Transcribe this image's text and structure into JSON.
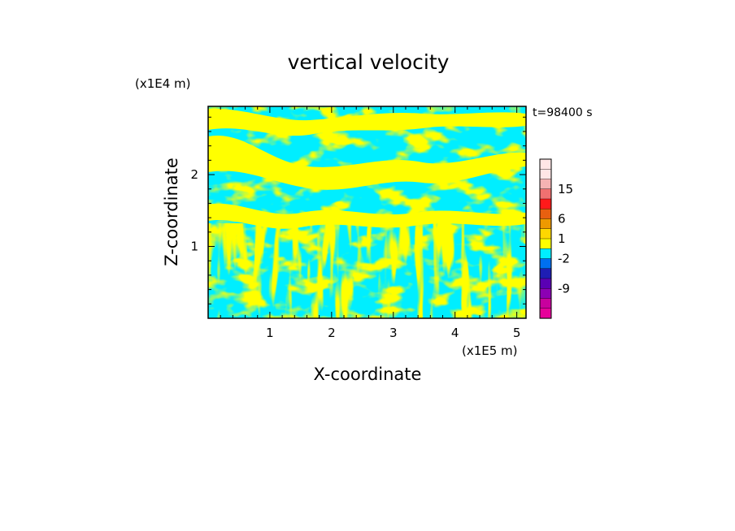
{
  "chart_data": {
    "type": "heatmap",
    "title": "vertical velocity",
    "xlabel": "X-coordinate",
    "ylabel": "Z-coordinate",
    "x_unit": "(x1E5 m)",
    "y_unit": "(x1E4 m)",
    "time_label": "t=98400 s",
    "xlim": [
      0,
      5.15
    ],
    "ylim": [
      0,
      2.95
    ],
    "x_ticks": [
      1,
      2,
      3,
      4,
      5
    ],
    "x_tick_labels": [
      "1",
      "2",
      "3",
      "4",
      "5"
    ],
    "y_ticks": [
      1,
      2
    ],
    "y_tick_labels": [
      "1",
      "2"
    ],
    "dominant_colors": {
      "positive": "#ffff00",
      "negative": "#00eeff"
    },
    "colorbar": {
      "labels": [
        {
          "value": 15,
          "text": "15"
        },
        {
          "value": 6,
          "text": "6"
        },
        {
          "value": 1,
          "text": "1"
        },
        {
          "value": -2,
          "text": "-2"
        },
        {
          "value": -9,
          "text": "-9"
        }
      ],
      "segments_top_to_bottom": [
        "#ffe6e6",
        "#ffe6e6",
        "#f5b3b3",
        "#f07070",
        "#ff1a1a",
        "#e86010",
        "#ee9900",
        "#ffd700",
        "#ffff00",
        "#00eeff",
        "#0070f0",
        "#1e1eb4",
        "#5a00b4",
        "#8c00b4",
        "#c8009e",
        "#e6009a"
      ]
    }
  }
}
